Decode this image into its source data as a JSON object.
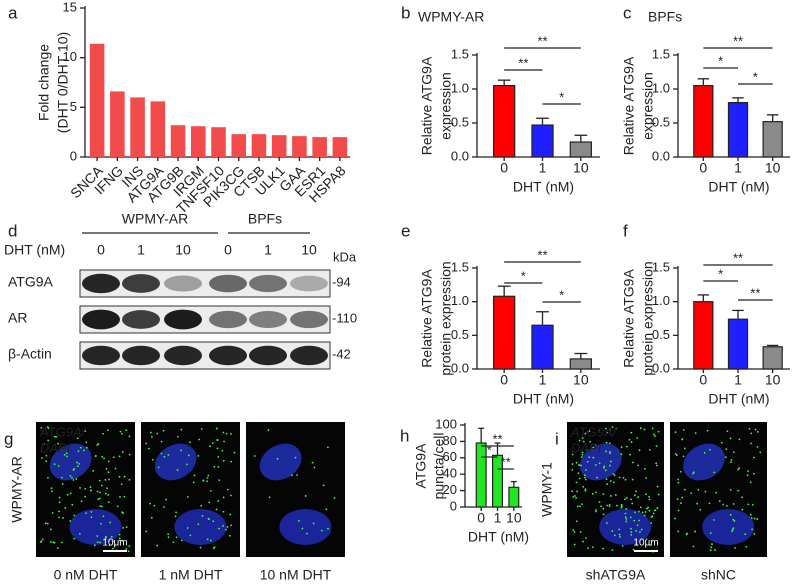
{
  "chart_data": [
    {
      "type": "bar",
      "panel": "a",
      "ylabel": [
        "Fold change",
        "(DHT 0/DHT 10)"
      ],
      "categories": [
        "SNCA",
        "IFNG",
        "INS",
        "ATG9A",
        "ATG9B",
        "IRGM",
        "TNFSF10",
        "PIK3CG",
        "CTSB",
        "ULK1",
        "GAA",
        "ESR1",
        "HSPA8"
      ],
      "values": [
        11.4,
        6.6,
        6.0,
        5.6,
        3.2,
        3.1,
        3.0,
        2.3,
        2.3,
        2.2,
        2.1,
        2.0,
        2.0
      ],
      "color": "#f24b4b",
      "highlight": "ATG9A",
      "highlight_color": "#e4252b",
      "ylim": [
        0,
        15
      ],
      "yticks": [
        0,
        5,
        10,
        15
      ]
    },
    {
      "type": "errorbar",
      "panel": "b",
      "title": "WPMY-AR",
      "ylabel": [
        "Relative ATG9A",
        "expression"
      ],
      "xlabel": "DHT (nM)",
      "categories": [
        "0",
        "1",
        "10"
      ],
      "values": [
        1.05,
        0.47,
        0.22
      ],
      "errors": [
        0.08,
        0.1,
        0.1
      ],
      "colors": [
        "#ff0000",
        "#1f1fff",
        "#8a8a8a"
      ],
      "significance": [
        "**",
        "**",
        "*"
      ],
      "ylim": [
        0,
        1.5
      ],
      "yticks": [
        {
          "value": 0,
          "label": "0.0"
        },
        0.5,
        {
          "value": 1,
          "label": "1.0"
        },
        1.5
      ]
    },
    {
      "type": "errorbar",
      "panel": "c",
      "title": "BPFs",
      "ylabel": [
        "Relative ATG9A",
        "expression"
      ],
      "xlabel": "DHT (nM)",
      "categories": [
        "0",
        "1",
        "10"
      ],
      "values": [
        1.05,
        0.8,
        0.52
      ],
      "errors": [
        0.1,
        0.07,
        0.1
      ],
      "colors": [
        "#ff0000",
        "#1f1fff",
        "#8a8a8a"
      ],
      "significance": [
        "**",
        "*",
        "*"
      ],
      "ylim": [
        0,
        1.5
      ],
      "yticks": [
        {
          "value": 0,
          "label": "0.0"
        },
        0.5,
        {
          "value": 1,
          "label": "1.0"
        },
        1.5
      ]
    },
    {
      "type": "errorbar",
      "panel": "e",
      "ylabel": [
        "Relative ATG9A",
        "protein expression"
      ],
      "xlabel": "DHT (nM)",
      "categories": [
        "0",
        "1",
        "10"
      ],
      "values": [
        1.08,
        0.65,
        0.15
      ],
      "errors": [
        0.15,
        0.2,
        0.08
      ],
      "colors": [
        "#ff0000",
        "#1f1fff",
        "#8a8a8a"
      ],
      "significance": [
        "**",
        "*",
        "*"
      ],
      "ylim": [
        0,
        1.5
      ],
      "yticks": [
        {
          "value": 0,
          "label": "0.0"
        },
        0.5,
        {
          "value": 1,
          "label": "1.0"
        },
        1.5
      ]
    },
    {
      "type": "errorbar",
      "panel": "f",
      "ylabel": [
        "Relative ATG9A",
        "protein expression"
      ],
      "xlabel": "DHT (nM)",
      "categories": [
        "0",
        "1",
        "10"
      ],
      "values": [
        1.0,
        0.74,
        0.33
      ],
      "errors": [
        0.1,
        0.13,
        0.02
      ],
      "colors": [
        "#ff0000",
        "#1f1fff",
        "#8a8a8a"
      ],
      "significance": [
        "**",
        "*",
        "**"
      ],
      "ylim": [
        0,
        1.5
      ],
      "yticks": [
        {
          "value": 0,
          "label": "0.0"
        },
        0.5,
        {
          "value": 1,
          "label": "1.0"
        },
        1.5
      ]
    },
    {
      "type": "errorbar",
      "panel": "h",
      "ylabel": [
        "ATG9A",
        "puncta/cell"
      ],
      "xlabel": "DHT (nM)",
      "categories": [
        "0",
        "1",
        "10"
      ],
      "values": [
        78,
        63,
        24
      ],
      "errors": [
        18,
        15,
        7
      ],
      "colors": [
        "#22e622",
        "#22e622",
        "#22e622"
      ],
      "significance": [
        "**",
        "*",
        "**"
      ],
      "ylim": [
        0,
        100
      ],
      "yticks": [
        0,
        20,
        40,
        60,
        80,
        100
      ]
    }
  ],
  "blot": {
    "panel": "d",
    "groups": [
      "WPMY-AR",
      "BPFs"
    ],
    "treatment": "DHT (nM)",
    "doses": [
      "0",
      "1",
      "10",
      "0",
      "1",
      "10"
    ],
    "unit": "kDa",
    "rows": [
      {
        "name": "ATG9A",
        "size": "-94"
      },
      {
        "name": "AR",
        "size": "-110"
      },
      {
        "name": "β-Actin",
        "size": "-42"
      }
    ]
  },
  "images": [
    {
      "panel": "g",
      "cell_line": "WPMY-AR",
      "stain": "ATG9A/",
      "counterstain": "DAPI",
      "scale": "10μm",
      "captions": [
        "0 nM DHT",
        "1 nM DHT",
        "10 nM DHT"
      ]
    },
    {
      "panel": "i",
      "cell_line": "WPMY-1",
      "stain": "ATG9A/",
      "counterstain": "DAPI",
      "scale": "10μm",
      "captions": [
        "shATG9A",
        "shNC"
      ]
    }
  ]
}
